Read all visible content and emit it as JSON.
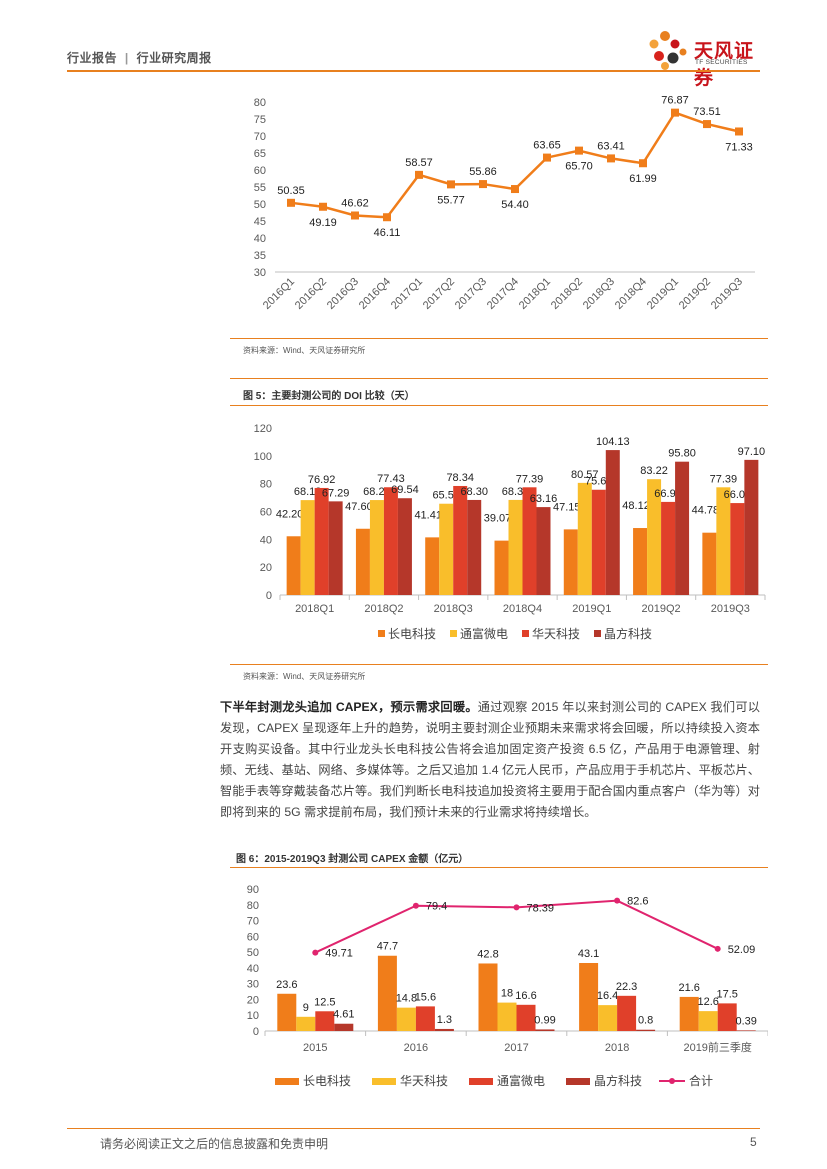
{
  "header": {
    "report_type": "行业报告",
    "separator": "|",
    "report_name": "行业研究周报",
    "logo_name": "天风证券",
    "logo_sub": "TF SECURITIES"
  },
  "chart1": {
    "source": "资料来源：Wind、天风证券研究所"
  },
  "chart2": {
    "caption": "图 5：主要封测公司的 DOI 比较（天）",
    "source": "资料来源：Wind、天风证券研究所"
  },
  "paragraph": {
    "lead": "下半年封测龙头追加 CAPEX，预示需求回暖。",
    "body": "通过观察 2015 年以来封测公司的 CAPEX 我们可以发现，CAPEX 呈现逐年上升的趋势，说明主要封测企业预期未来需求将会回暖，所以持续投入资本开支购买设备。其中行业龙头长电科技公告将会追加固定资产投资 6.5 亿，产品用于电源管理、射频、无线、基站、网络、多媒体等。之后又追加 1.4 亿元人民币，产品应用于手机芯片、平板芯片、智能手表等穿戴装备芯片等。我们判断长电科技追加投资将主要用于配合国内重点客户（华为等）对即将到来的 5G 需求提前布局，我们预计未来的行业需求将持续增长。"
  },
  "chart3": {
    "caption": "图 6：2015-2019Q3 封测公司 CAPEX 金额（亿元）"
  },
  "footer": {
    "disclaimer": "请务必阅读正文之后的信息披露和免责申明",
    "page": "5"
  },
  "chart_data": [
    {
      "type": "line",
      "categories": [
        "2016Q1",
        "2016Q2",
        "2016Q3",
        "2016Q4",
        "2017Q1",
        "2017Q2",
        "2017Q3",
        "2017Q4",
        "2018Q1",
        "2018Q2",
        "2018Q3",
        "2018Q4",
        "2019Q1",
        "2019Q2",
        "2019Q3"
      ],
      "values": [
        50.35,
        49.19,
        46.62,
        46.11,
        58.57,
        55.77,
        55.86,
        54.4,
        63.65,
        65.7,
        63.41,
        61.99,
        76.87,
        73.51,
        71.33
      ],
      "ylim": [
        30,
        80
      ],
      "yticks": [
        30,
        35,
        40,
        45,
        50,
        55,
        60,
        65,
        70,
        75,
        80
      ],
      "color": "#f07d1a"
    },
    {
      "type": "bar",
      "categories": [
        "2018Q1",
        "2018Q2",
        "2018Q3",
        "2018Q4",
        "2019Q1",
        "2019Q2",
        "2019Q3"
      ],
      "series": [
        {
          "name": "长电科技",
          "color": "#f07d1a",
          "values": [
            42.2,
            47.6,
            41.41,
            39.07,
            47.15,
            48.12,
            44.78
          ]
        },
        {
          "name": "通富微电",
          "color": "#f9be2b",
          "values": [
            68.18,
            68.22,
            65.59,
            68.32,
            80.57,
            83.22,
            77.39
          ]
        },
        {
          "name": "华天科技",
          "color": "#e0402a",
          "values": [
            76.92,
            77.43,
            78.34,
            77.39,
            75.63,
            66.9,
            66.05
          ]
        },
        {
          "name": "晶方科技",
          "color": "#b5372a",
          "values": [
            67.29,
            69.54,
            68.3,
            63.16,
            104.13,
            95.8,
            97.1
          ]
        }
      ],
      "ylim": [
        0,
        120
      ],
      "yticks": [
        0,
        20,
        40,
        60,
        80,
        100,
        120
      ],
      "legend": "bottom"
    },
    {
      "type": "bar",
      "categories": [
        "2015",
        "2016",
        "2017",
        "2018",
        "2019前三季度"
      ],
      "series": [
        {
          "name": "长电科技",
          "color": "#f07d1a",
          "values": [
            23.6,
            47.7,
            42.8,
            43.1,
            21.6
          ]
        },
        {
          "name": "华天科技",
          "color": "#f9be2b",
          "values": [
            9,
            14.8,
            18,
            16.4,
            12.6
          ]
        },
        {
          "name": "通富微电",
          "color": "#e0402a",
          "values": [
            12.5,
            15.6,
            16.6,
            22.3,
            17.5
          ]
        },
        {
          "name": "晶方科技",
          "color": "#b5372a",
          "values": [
            4.61,
            1.3,
            0.99,
            0.8,
            0.39
          ]
        }
      ],
      "line": {
        "name": "合计",
        "color": "#e0246e",
        "values": [
          49.71,
          79.4,
          78.39,
          82.6,
          52.09
        ]
      },
      "ylim": [
        0,
        90
      ],
      "yticks": [
        0,
        10,
        20,
        30,
        40,
        50,
        60,
        70,
        80,
        90
      ],
      "legend": "bottom"
    }
  ]
}
